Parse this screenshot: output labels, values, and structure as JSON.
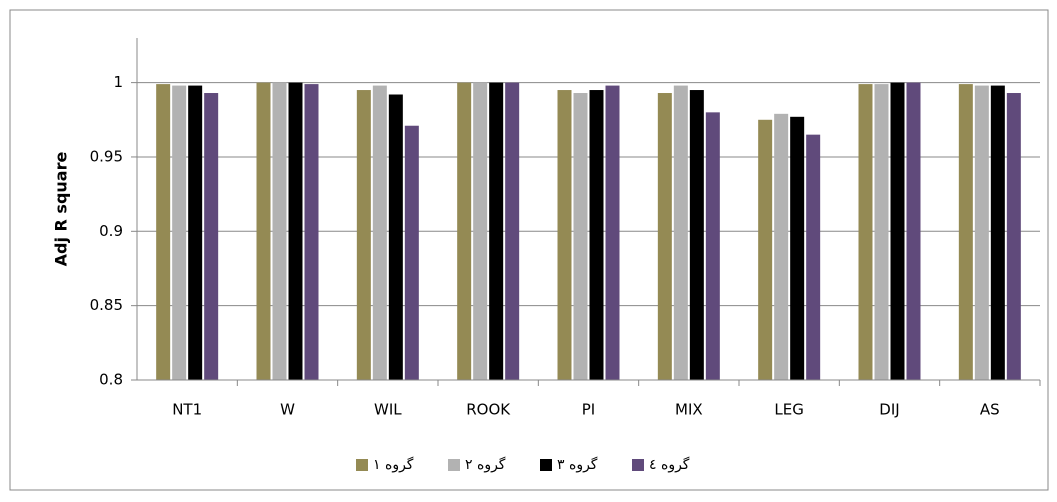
{
  "chart_data": {
    "type": "bar",
    "y_label": "Adj R square",
    "categories": [
      "NT1",
      "W",
      "WIL",
      "ROOK",
      "PI",
      "MIX",
      "LEG",
      "DIJ",
      "AS"
    ],
    "series": [
      {
        "name": "گروه ۱",
        "color": "#948a54",
        "values": [
          0.999,
          1.0,
          0.995,
          1.0,
          0.995,
          0.993,
          0.975,
          0.999,
          0.999
        ]
      },
      {
        "name": "گروه ۲",
        "color": "#b2b2b2",
        "values": [
          0.998,
          1.0,
          0.998,
          1.0,
          0.993,
          0.998,
          0.979,
          0.999,
          0.998
        ]
      },
      {
        "name": "گروه ۳",
        "color": "#000000",
        "values": [
          0.998,
          1.0,
          0.992,
          1.0,
          0.995,
          0.995,
          0.977,
          1.0,
          0.998
        ]
      },
      {
        "name": "گروه ٤",
        "color": "#604a7b",
        "values": [
          0.993,
          0.999,
          0.971,
          1.0,
          0.998,
          0.98,
          0.965,
          1.0,
          0.993
        ]
      }
    ],
    "ylim": [
      0.8,
      1.03
    ],
    "yticks": [
      0.8,
      0.85,
      0.9,
      0.95,
      1
    ],
    "grid": true,
    "legend": "bottom"
  }
}
